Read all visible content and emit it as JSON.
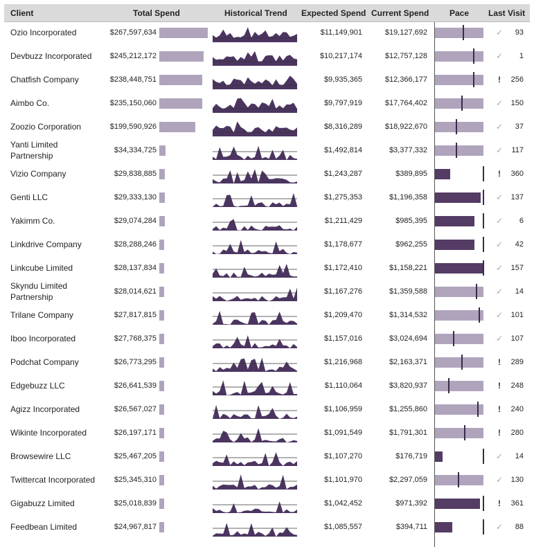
{
  "headers": {
    "client": "Client",
    "total_spend": "Total Spend",
    "historical_trend": "Historical Trend",
    "expected_spend": "Expected Spend",
    "current_spend": "Current Spend",
    "pace": "Pace",
    "last_visit": "Last Visit"
  },
  "colors": {
    "bar_light": "#b0a4bd",
    "bar_dark": "#543c64",
    "trend_fill": "#4b3560",
    "header_bg": "#dadada"
  },
  "rows": [
    {
      "client": "Ozio Incorporated",
      "total_spend": "$267,597,634",
      "spend_value": 267597634,
      "expected": "$11,149,901",
      "current": "$19,127,692",
      "pace_fraction": 1.0,
      "over_pace": true,
      "tick_fraction": 0.583,
      "status": "check",
      "last_visit": "93"
    },
    {
      "client": "Devbuzz Incorporated",
      "total_spend": "$245,212,172",
      "spend_value": 245212172,
      "expected": "$10,217,174",
      "current": "$12,757,128",
      "pace_fraction": 1.0,
      "over_pace": true,
      "tick_fraction": 0.8,
      "status": "check",
      "last_visit": "1"
    },
    {
      "client": "Chatfish Company",
      "total_spend": "$238,448,751",
      "spend_value": 238448751,
      "expected": "$9,935,365",
      "current": "$12,366,177",
      "pace_fraction": 1.0,
      "over_pace": true,
      "tick_fraction": 0.803,
      "status": "alert",
      "last_visit": "256"
    },
    {
      "client": "Aimbo Co.",
      "total_spend": "$235,150,060",
      "spend_value": 235150060,
      "expected": "$9,797,919",
      "current": "$17,764,402",
      "pace_fraction": 1.0,
      "over_pace": true,
      "tick_fraction": 0.552,
      "status": "check",
      "last_visit": "150"
    },
    {
      "client": "Zoozio Corporation",
      "total_spend": "$199,590,926",
      "spend_value": 199590926,
      "expected": "$8,316,289",
      "current": "$18,922,670",
      "pace_fraction": 1.0,
      "over_pace": true,
      "tick_fraction": 0.44,
      "status": "check",
      "last_visit": "37"
    },
    {
      "client": "Yanti Limited Partnership",
      "total_spend": "$34,334,725",
      "spend_value": 34334725,
      "expected": "$1,492,814",
      "current": "$3,377,332",
      "pace_fraction": 1.0,
      "over_pace": true,
      "tick_fraction": 0.442,
      "status": "check",
      "last_visit": "117"
    },
    {
      "client": "Vizio Company",
      "total_spend": "$29,838,885",
      "spend_value": 29838885,
      "expected": "$1,243,287",
      "current": "$389,895",
      "pace_fraction": 0.314,
      "over_pace": false,
      "tick_fraction": 1.0,
      "status": "alert",
      "last_visit": "360"
    },
    {
      "client": "Genti LLC",
      "total_spend": "$29,333,130",
      "spend_value": 29333130,
      "expected": "$1,275,353",
      "current": "$1,196,358",
      "pace_fraction": 0.938,
      "over_pace": false,
      "tick_fraction": 1.0,
      "status": "check",
      "last_visit": "137"
    },
    {
      "client": "Yakimm Co.",
      "total_spend": "$29,074,284",
      "spend_value": 29074284,
      "expected": "$1,211,429",
      "current": "$985,395",
      "pace_fraction": 0.813,
      "over_pace": false,
      "tick_fraction": 1.0,
      "status": "check",
      "last_visit": "6"
    },
    {
      "client": "Linkdrive Company",
      "total_spend": "$28,288,246",
      "spend_value": 28288246,
      "expected": "$1,178,677",
      "current": "$962,255",
      "pace_fraction": 0.816,
      "over_pace": false,
      "tick_fraction": 1.0,
      "status": "check",
      "last_visit": "42"
    },
    {
      "client": "Linkcube Limited",
      "total_spend": "$28,137,834",
      "spend_value": 28137834,
      "expected": "$1,172,410",
      "current": "$1,158,221",
      "pace_fraction": 0.988,
      "over_pace": false,
      "tick_fraction": 1.0,
      "status": "check",
      "last_visit": "157"
    },
    {
      "client": "Skyndu Limited Partnership",
      "total_spend": "$28,014,621",
      "spend_value": 28014621,
      "expected": "$1,167,276",
      "current": "$1,359,588",
      "pace_fraction": 1.0,
      "over_pace": true,
      "tick_fraction": 0.859,
      "status": "check",
      "last_visit": "14"
    },
    {
      "client": "Trilane Company",
      "total_spend": "$27,817,815",
      "spend_value": 27817815,
      "expected": "$1,209,470",
      "current": "$1,314,532",
      "pace_fraction": 1.0,
      "over_pace": true,
      "tick_fraction": 0.92,
      "status": "check",
      "last_visit": "101"
    },
    {
      "client": "Iboo Incorporated",
      "total_spend": "$27,768,375",
      "spend_value": 27768375,
      "expected": "$1,157,016",
      "current": "$3,024,694",
      "pace_fraction": 1.0,
      "over_pace": true,
      "tick_fraction": 0.383,
      "status": "check",
      "last_visit": "107"
    },
    {
      "client": "Podchat Company",
      "total_spend": "$26,773,295",
      "spend_value": 26773295,
      "expected": "$1,216,968",
      "current": "$2,163,371",
      "pace_fraction": 1.0,
      "over_pace": true,
      "tick_fraction": 0.563,
      "status": "alert",
      "last_visit": "289"
    },
    {
      "client": "Edgebuzz LLC",
      "total_spend": "$26,641,539",
      "spend_value": 26641539,
      "expected": "$1,110,064",
      "current": "$3,820,937",
      "pace_fraction": 1.0,
      "over_pace": true,
      "tick_fraction": 0.29,
      "status": "alert",
      "last_visit": "248"
    },
    {
      "client": "Agizz Incorporated",
      "total_spend": "$26,567,027",
      "spend_value": 26567027,
      "expected": "$1,106,959",
      "current": "$1,255,860",
      "pace_fraction": 1.0,
      "over_pace": true,
      "tick_fraction": 0.881,
      "status": "alert",
      "last_visit": "240"
    },
    {
      "client": "Wikinte Incorporated",
      "total_spend": "$26,197,171",
      "spend_value": 26197171,
      "expected": "$1,091,549",
      "current": "$1,791,301",
      "pace_fraction": 1.0,
      "over_pace": true,
      "tick_fraction": 0.609,
      "status": "alert",
      "last_visit": "280"
    },
    {
      "client": "Browsewire LLC",
      "total_spend": "$25,467,205",
      "spend_value": 25467205,
      "expected": "$1,107,270",
      "current": "$176,719",
      "pace_fraction": 0.16,
      "over_pace": false,
      "tick_fraction": 1.0,
      "status": "check",
      "last_visit": "14"
    },
    {
      "client": "Twittercat Incorporated",
      "total_spend": "$25,345,310",
      "spend_value": 25345310,
      "expected": "$1,101,970",
      "current": "$2,297,059",
      "pace_fraction": 1.0,
      "over_pace": true,
      "tick_fraction": 0.48,
      "status": "check",
      "last_visit": "130"
    },
    {
      "client": "Gigabuzz Limited",
      "total_spend": "$25,018,839",
      "spend_value": 25018839,
      "expected": "$1,042,452",
      "current": "$971,392",
      "pace_fraction": 0.932,
      "over_pace": false,
      "tick_fraction": 1.0,
      "status": "alert",
      "last_visit": "361"
    },
    {
      "client": "Feedbean Limited",
      "total_spend": "$24,967,817",
      "spend_value": 24967817,
      "expected": "$1,085,557",
      "current": "$394,711",
      "pace_fraction": 0.364,
      "over_pace": false,
      "tick_fraction": 1.0,
      "status": "check",
      "last_visit": "88"
    }
  ]
}
